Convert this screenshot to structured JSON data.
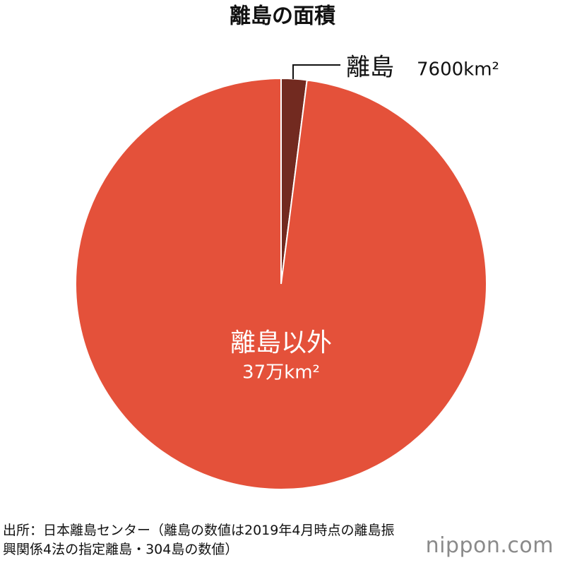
{
  "chart_data": {
    "type": "pie",
    "title": "離島の面積",
    "categories": [
      "離島",
      "離島以外"
    ],
    "values": [
      7600,
      370000
    ],
    "value_labels": [
      "7600km²",
      "37万km²"
    ],
    "colors": [
      "#722a20",
      "#e4513a"
    ],
    "source": "出所：日本離島センター（離島の数値は2019年4月時点の離島振興関係4法の指定離島・304島の数値）",
    "logo": "nippon.com"
  }
}
